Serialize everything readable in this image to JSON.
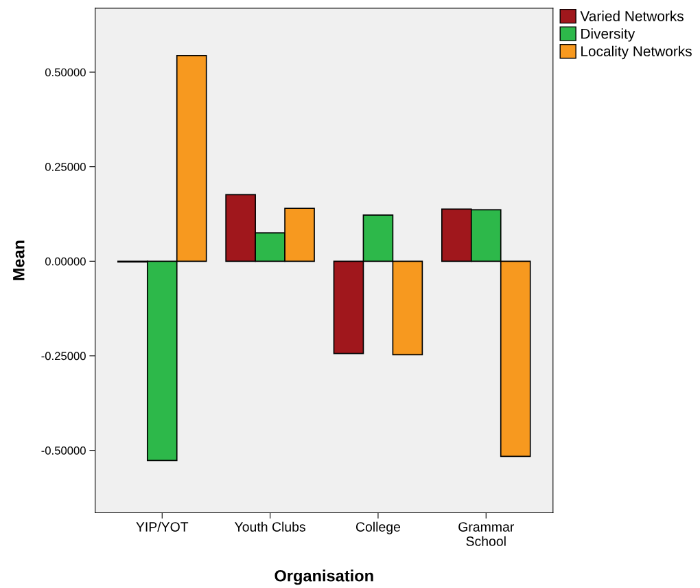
{
  "chart_data": {
    "type": "bar",
    "xlabel": "Organisation",
    "ylabel": "Mean",
    "categories": [
      "YIP/YOT",
      "Youth Clubs",
      "College",
      "Grammar School"
    ],
    "series": [
      {
        "name": "Varied Networks",
        "color": "#a0171c",
        "values": [
          -0.002,
          0.176,
          -0.244,
          0.138
        ]
      },
      {
        "name": "Diversity",
        "color": "#2db84a",
        "values": [
          -0.527,
          0.075,
          0.122,
          0.136
        ]
      },
      {
        "name": "Locality Networks",
        "color": "#f7991f",
        "values": [
          0.544,
          0.14,
          -0.247,
          -0.516
        ]
      }
    ],
    "ylim": [
      -0.665,
      0.669
    ],
    "yticks": [
      {
        "value": -0.5,
        "label": "-0.50000"
      },
      {
        "value": -0.25,
        "label": "-0.25000"
      },
      {
        "value": 0,
        "label": "0.00000"
      },
      {
        "value": 0.25,
        "label": "0.25000"
      },
      {
        "value": 0.5,
        "label": "0.50000"
      }
    ],
    "grid": false,
    "legend": "top right"
  }
}
